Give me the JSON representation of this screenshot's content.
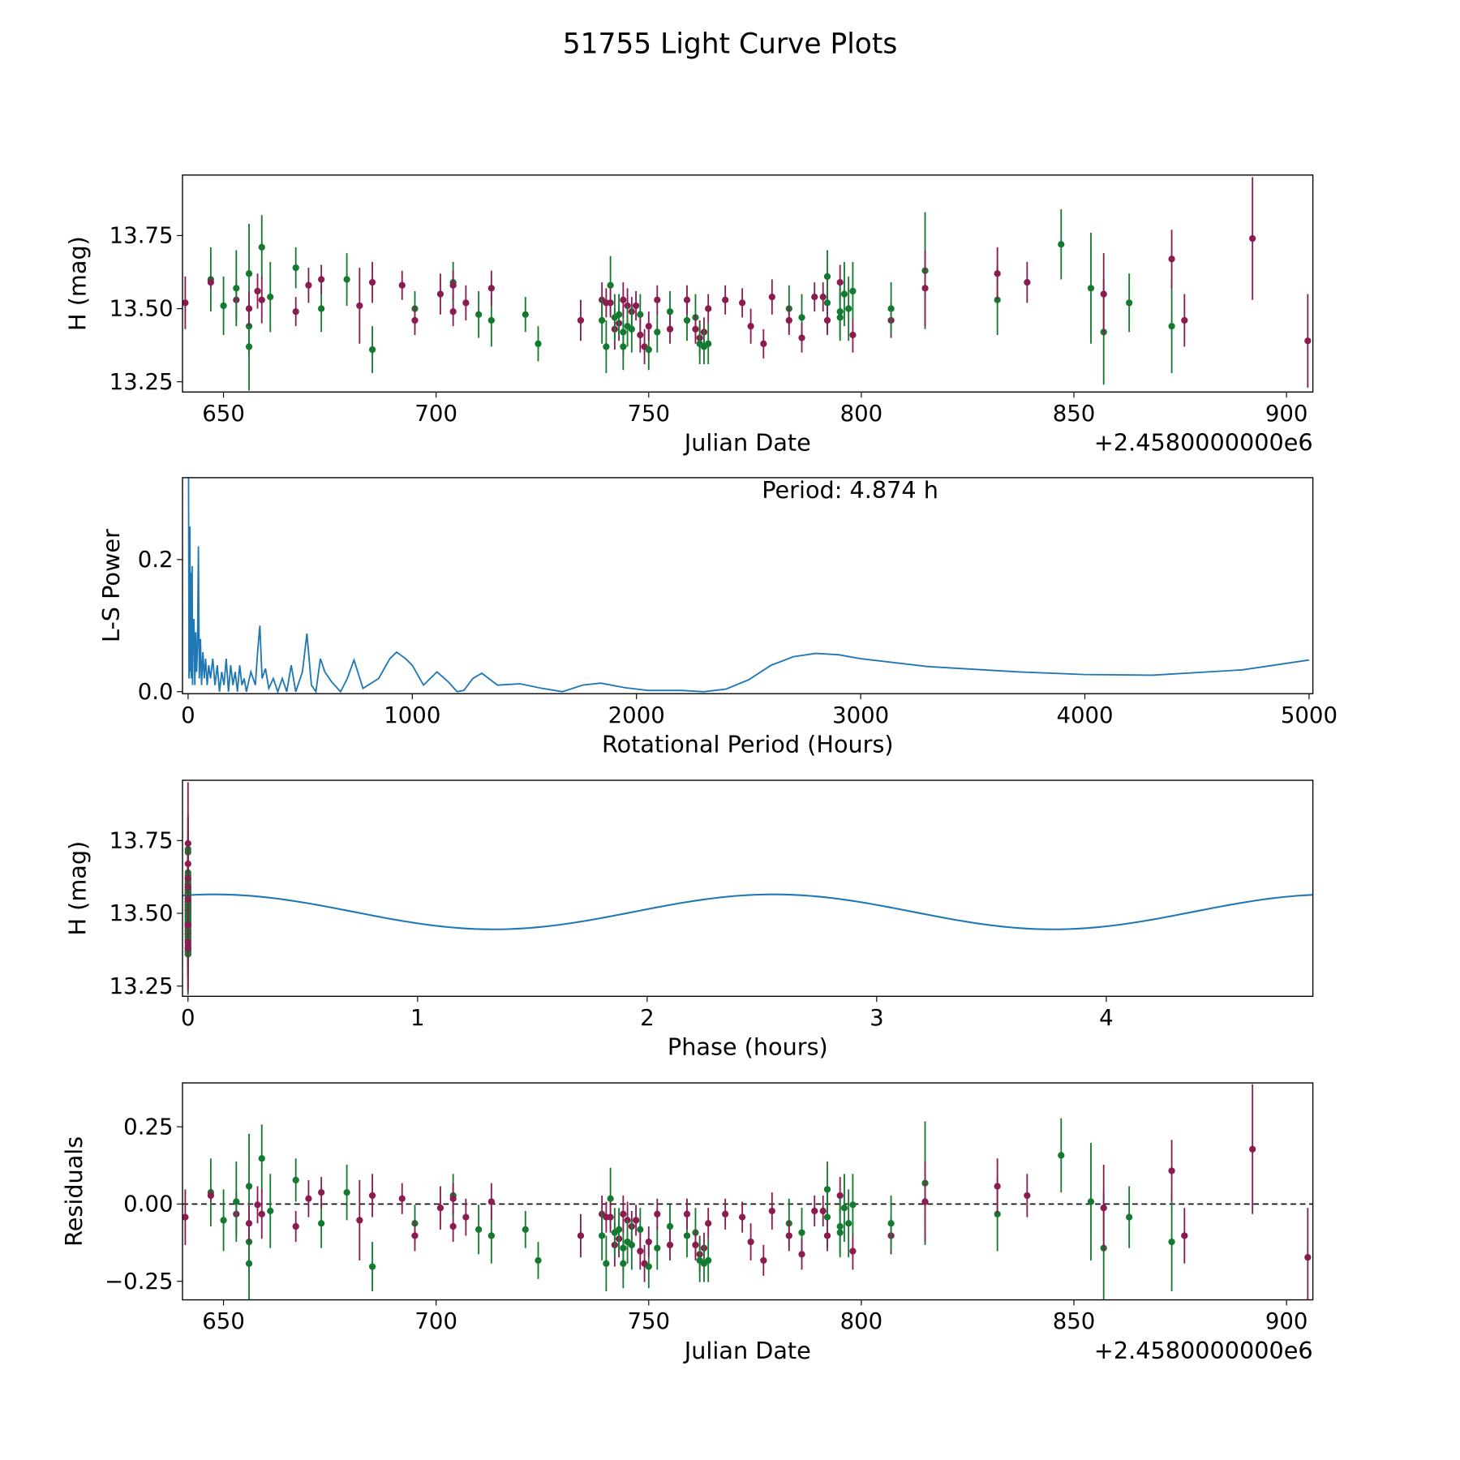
{
  "title": "51755 Light Curve Plots",
  "colors": {
    "band1": "#8a1c52",
    "band2": "#147a30",
    "model": "#1f77b4",
    "axis": "#000000"
  },
  "chart_data": [
    {
      "id": "lightcurve",
      "type": "scatter",
      "xlabel": "Julian Date",
      "ylabel": "H (mag)",
      "offset_label": "+2.4580000000e6",
      "xlim": [
        640.35,
        906.2
      ],
      "ylim": [
        13.215,
        13.957
      ],
      "xticks": [
        650,
        700,
        750,
        800,
        850,
        900
      ],
      "yticks": [
        13.25,
        13.5,
        13.75
      ],
      "ytick_labels": [
        "13.25",
        "13.50",
        "13.75"
      ],
      "points_note": "[jd, H mag, error, band]"
    },
    {
      "id": "periodogram",
      "type": "line",
      "xlabel": "Rotational Period (Hours)",
      "ylabel": "L-S Power",
      "annotation": "Period: 4.874 h",
      "xlim": [
        -25,
        5017
      ],
      "ylim": [
        -0.003,
        0.324
      ],
      "xticks": [
        0,
        1000,
        2000,
        3000,
        4000,
        5000
      ],
      "yticks": [
        0,
        0.2
      ],
      "ytick_labels": [
        "0.0",
        "0.2"
      ],
      "series": [
        [
          2,
          0.33
        ],
        [
          4,
          0.02
        ],
        [
          6,
          0.05
        ],
        [
          8,
          0.25
        ],
        [
          10,
          0.03
        ],
        [
          12,
          0.18
        ],
        [
          14,
          0.02
        ],
        [
          18,
          0.19
        ],
        [
          20,
          0.01
        ],
        [
          22,
          0.1
        ],
        [
          26,
          0.11
        ],
        [
          30,
          0.01
        ],
        [
          34,
          0.09
        ],
        [
          38,
          0.03
        ],
        [
          42,
          0.07
        ],
        [
          46,
          0.22
        ],
        [
          50,
          0.02
        ],
        [
          55,
          0.08
        ],
        [
          60,
          0.01
        ],
        [
          66,
          0.06
        ],
        [
          72,
          0.02
        ],
        [
          78,
          0.05
        ],
        [
          85,
          0.01
        ],
        [
          92,
          0.04
        ],
        [
          100,
          0.02
        ],
        [
          110,
          0.05
        ],
        [
          120,
          0.01
        ],
        [
          130,
          0.04
        ],
        [
          140,
          0.0
        ],
        [
          150,
          0.03
        ],
        [
          160,
          0.01
        ],
        [
          170,
          0.05
        ],
        [
          180,
          0.0
        ],
        [
          190,
          0.04
        ],
        [
          200,
          0.01
        ],
        [
          210,
          0.03
        ],
        [
          220,
          0.0
        ],
        [
          230,
          0.04
        ],
        [
          240,
          0.01
        ],
        [
          250,
          0.02
        ],
        [
          260,
          0.0
        ],
        [
          280,
          0.03
        ],
        [
          300,
          0.01
        ],
        [
          310,
          0.06
        ],
        [
          320,
          0.1
        ],
        [
          330,
          0.02
        ],
        [
          345,
          0.035
        ],
        [
          360,
          0.005
        ],
        [
          380,
          0.02
        ],
        [
          400,
          0.0
        ],
        [
          420,
          0.02
        ],
        [
          440,
          0.0
        ],
        [
          460,
          0.04
        ],
        [
          480,
          0.0
        ],
        [
          510,
          0.03
        ],
        [
          530,
          0.088
        ],
        [
          550,
          0.01
        ],
        [
          570,
          0.0
        ],
        [
          590,
          0.05
        ],
        [
          610,
          0.03
        ],
        [
          640,
          0.015
        ],
        [
          680,
          0.0
        ],
        [
          710,
          0.02
        ],
        [
          740,
          0.048
        ],
        [
          780,
          0.005
        ],
        [
          850,
          0.02
        ],
        [
          900,
          0.05
        ],
        [
          930,
          0.06
        ],
        [
          970,
          0.05
        ],
        [
          1000,
          0.04
        ],
        [
          1050,
          0.01
        ],
        [
          1110,
          0.03
        ],
        [
          1160,
          0.015
        ],
        [
          1200,
          0.0
        ],
        [
          1230,
          0.002
        ],
        [
          1270,
          0.02
        ],
        [
          1310,
          0.028
        ],
        [
          1380,
          0.01
        ],
        [
          1480,
          0.012
        ],
        [
          1580,
          0.005
        ],
        [
          1670,
          0.0
        ],
        [
          1760,
          0.01
        ],
        [
          1840,
          0.013
        ],
        [
          1950,
          0.006
        ],
        [
          2050,
          0.002
        ],
        [
          2200,
          0.002
        ],
        [
          2300,
          0.0
        ],
        [
          2400,
          0.004
        ],
        [
          2500,
          0.018
        ],
        [
          2600,
          0.04
        ],
        [
          2700,
          0.053
        ],
        [
          2800,
          0.058
        ],
        [
          2900,
          0.056
        ],
        [
          3000,
          0.05
        ],
        [
          3300,
          0.038
        ],
        [
          3700,
          0.03
        ],
        [
          4000,
          0.026
        ],
        [
          4300,
          0.025
        ],
        [
          4700,
          0.033
        ],
        [
          5000,
          0.048
        ]
      ]
    },
    {
      "id": "phased",
      "type": "scatter",
      "xlabel": "Phase (hours)",
      "ylabel": "H (mag)",
      "period_hours": 4.874,
      "model": {
        "mean": 13.505,
        "amplitude": 0.06,
        "peak_phase": 2.55,
        "harmonics": 2
      },
      "xlim": [
        -0.024,
        4.9
      ],
      "ylim": [
        13.215,
        13.957
      ],
      "xticks": [
        0,
        1,
        2,
        3,
        4
      ],
      "yticks": [
        13.25,
        13.5,
        13.75
      ],
      "ytick_labels": [
        "13.25",
        "13.50",
        "13.75"
      ]
    },
    {
      "id": "residuals",
      "type": "scatter",
      "xlabel": "Julian Date",
      "ylabel": "Residuals",
      "offset_label": "+2.4580000000e6",
      "xlim": [
        640.35,
        906.2
      ],
      "ylim": [
        -0.31,
        0.392
      ],
      "xticks": [
        650,
        700,
        750,
        800,
        850,
        900
      ],
      "yticks": [
        -0.25,
        0,
        0.25
      ],
      "ytick_labels": [
        "−0.25",
        "0.00",
        "0.25"
      ]
    }
  ],
  "observations": [
    [
      641,
      13.52,
      0.09,
      1
    ],
    [
      647,
      13.6,
      0.11,
      2
    ],
    [
      647,
      13.59,
      0.02,
      1
    ],
    [
      650,
      13.51,
      0.1,
      2
    ],
    [
      653,
      13.53,
      0.07,
      1
    ],
    [
      653,
      13.57,
      0.13,
      2
    ],
    [
      656,
      13.62,
      0.17,
      2
    ],
    [
      656,
      13.44,
      0.1,
      2
    ],
    [
      656,
      13.37,
      0.15,
      2
    ],
    [
      656,
      13.5,
      0.06,
      1
    ],
    [
      658,
      13.56,
      0.06,
      1
    ],
    [
      659,
      13.71,
      0.11,
      2
    ],
    [
      659,
      13.53,
      0.08,
      1
    ],
    [
      661,
      13.54,
      0.12,
      2
    ],
    [
      667,
      13.64,
      0.07,
      2
    ],
    [
      667,
      13.49,
      0.05,
      1
    ],
    [
      670,
      13.58,
      0.06,
      1
    ],
    [
      673,
      13.5,
      0.08,
      2
    ],
    [
      673,
      13.6,
      0.05,
      1
    ],
    [
      679,
      13.6,
      0.09,
      2
    ],
    [
      682,
      13.51,
      0.13,
      1
    ],
    [
      685,
      13.36,
      0.08,
      2
    ],
    [
      685,
      13.59,
      0.07,
      1
    ],
    [
      692,
      13.58,
      0.05,
      1
    ],
    [
      695,
      13.5,
      0.06,
      2
    ],
    [
      695,
      13.46,
      0.05,
      1
    ],
    [
      701,
      13.55,
      0.07,
      1
    ],
    [
      704,
      13.49,
      0.05,
      1
    ],
    [
      704,
      13.59,
      0.07,
      2
    ],
    [
      704,
      13.58,
      0.05,
      1
    ],
    [
      707,
      13.52,
      0.06,
      1
    ],
    [
      710,
      13.48,
      0.08,
      2
    ],
    [
      713,
      13.46,
      0.09,
      2
    ],
    [
      713,
      13.57,
      0.06,
      1
    ],
    [
      721,
      13.48,
      0.06,
      2
    ],
    [
      724,
      13.38,
      0.06,
      2
    ],
    [
      734,
      13.46,
      0.07,
      1
    ],
    [
      739,
      13.53,
      0.06,
      1
    ],
    [
      739,
      13.46,
      0.08,
      2
    ],
    [
      740,
      13.37,
      0.09,
      2
    ],
    [
      740,
      13.52,
      0.05,
      1
    ],
    [
      741,
      13.58,
      0.1,
      2
    ],
    [
      741,
      13.52,
      0.05,
      1
    ],
    [
      742,
      13.43,
      0.07,
      1
    ],
    [
      742,
      13.47,
      0.08,
      2
    ],
    [
      743,
      13.45,
      0.06,
      1
    ],
    [
      743,
      13.48,
      0.07,
      2
    ],
    [
      744,
      13.42,
      0.08,
      2
    ],
    [
      744,
      13.53,
      0.06,
      1
    ],
    [
      744,
      13.37,
      0.08,
      2
    ],
    [
      745,
      13.51,
      0.06,
      1
    ],
    [
      745,
      13.44,
      0.07,
      2
    ],
    [
      746,
      13.49,
      0.05,
      1
    ],
    [
      746,
      13.43,
      0.08,
      2
    ],
    [
      747,
      13.51,
      0.05,
      1
    ],
    [
      748,
      13.48,
      0.07,
      2
    ],
    [
      748,
      13.41,
      0.06,
      1
    ],
    [
      749,
      13.37,
      0.06,
      1
    ],
    [
      750,
      13.36,
      0.07,
      2
    ],
    [
      750,
      13.44,
      0.05,
      1
    ],
    [
      752,
      13.42,
      0.07,
      2
    ],
    [
      752,
      13.53,
      0.05,
      1
    ],
    [
      755,
      13.49,
      0.07,
      2
    ],
    [
      755,
      13.43,
      0.05,
      1
    ],
    [
      759,
      13.46,
      0.07,
      2
    ],
    [
      759,
      13.53,
      0.05,
      1
    ],
    [
      761,
      13.47,
      0.08,
      2
    ],
    [
      761,
      13.43,
      0.05,
      1
    ],
    [
      762,
      13.4,
      0.06,
      1
    ],
    [
      762,
      13.38,
      0.07,
      2
    ],
    [
      763,
      13.42,
      0.05,
      1
    ],
    [
      763,
      13.37,
      0.06,
      2
    ],
    [
      764,
      13.38,
      0.07,
      2
    ],
    [
      764,
      13.5,
      0.05,
      1
    ],
    [
      768,
      13.53,
      0.05,
      1
    ],
    [
      772,
      13.52,
      0.05,
      1
    ],
    [
      774,
      13.44,
      0.06,
      1
    ],
    [
      777,
      13.38,
      0.05,
      1
    ],
    [
      779,
      13.54,
      0.06,
      1
    ],
    [
      783,
      13.5,
      0.08,
      2
    ],
    [
      783,
      13.46,
      0.05,
      1
    ],
    [
      786,
      13.47,
      0.08,
      2
    ],
    [
      786,
      13.4,
      0.05,
      1
    ],
    [
      789,
      13.54,
      0.05,
      1
    ],
    [
      791,
      13.54,
      0.05,
      1
    ],
    [
      792,
      13.52,
      0.1,
      2
    ],
    [
      792,
      13.61,
      0.09,
      2
    ],
    [
      792,
      13.46,
      0.05,
      1
    ],
    [
      795,
      13.59,
      0.06,
      1
    ],
    [
      795,
      13.47,
      0.08,
      2
    ],
    [
      795,
      13.49,
      0.09,
      2
    ],
    [
      796,
      13.55,
      0.11,
      2
    ],
    [
      797,
      13.5,
      0.11,
      2
    ],
    [
      798,
      13.41,
      0.06,
      1
    ],
    [
      798,
      13.56,
      0.1,
      2
    ],
    [
      807,
      13.46,
      0.06,
      1
    ],
    [
      807,
      13.5,
      0.09,
      2
    ],
    [
      815,
      13.63,
      0.2,
      2
    ],
    [
      815,
      13.57,
      0.13,
      1
    ],
    [
      832,
      13.53,
      0.12,
      2
    ],
    [
      832,
      13.62,
      0.09,
      1
    ],
    [
      839,
      13.59,
      0.07,
      1
    ],
    [
      847,
      13.72,
      0.12,
      2
    ],
    [
      854,
      13.57,
      0.19,
      2
    ],
    [
      857,
      13.42,
      0.18,
      2
    ],
    [
      857,
      13.55,
      0.14,
      1
    ],
    [
      863,
      13.52,
      0.1,
      2
    ],
    [
      873,
      13.44,
      0.16,
      2
    ],
    [
      873,
      13.67,
      0.1,
      1
    ],
    [
      876,
      13.46,
      0.09,
      1
    ],
    [
      892,
      13.74,
      0.21,
      1
    ],
    [
      905,
      13.39,
      0.16,
      1
    ]
  ]
}
